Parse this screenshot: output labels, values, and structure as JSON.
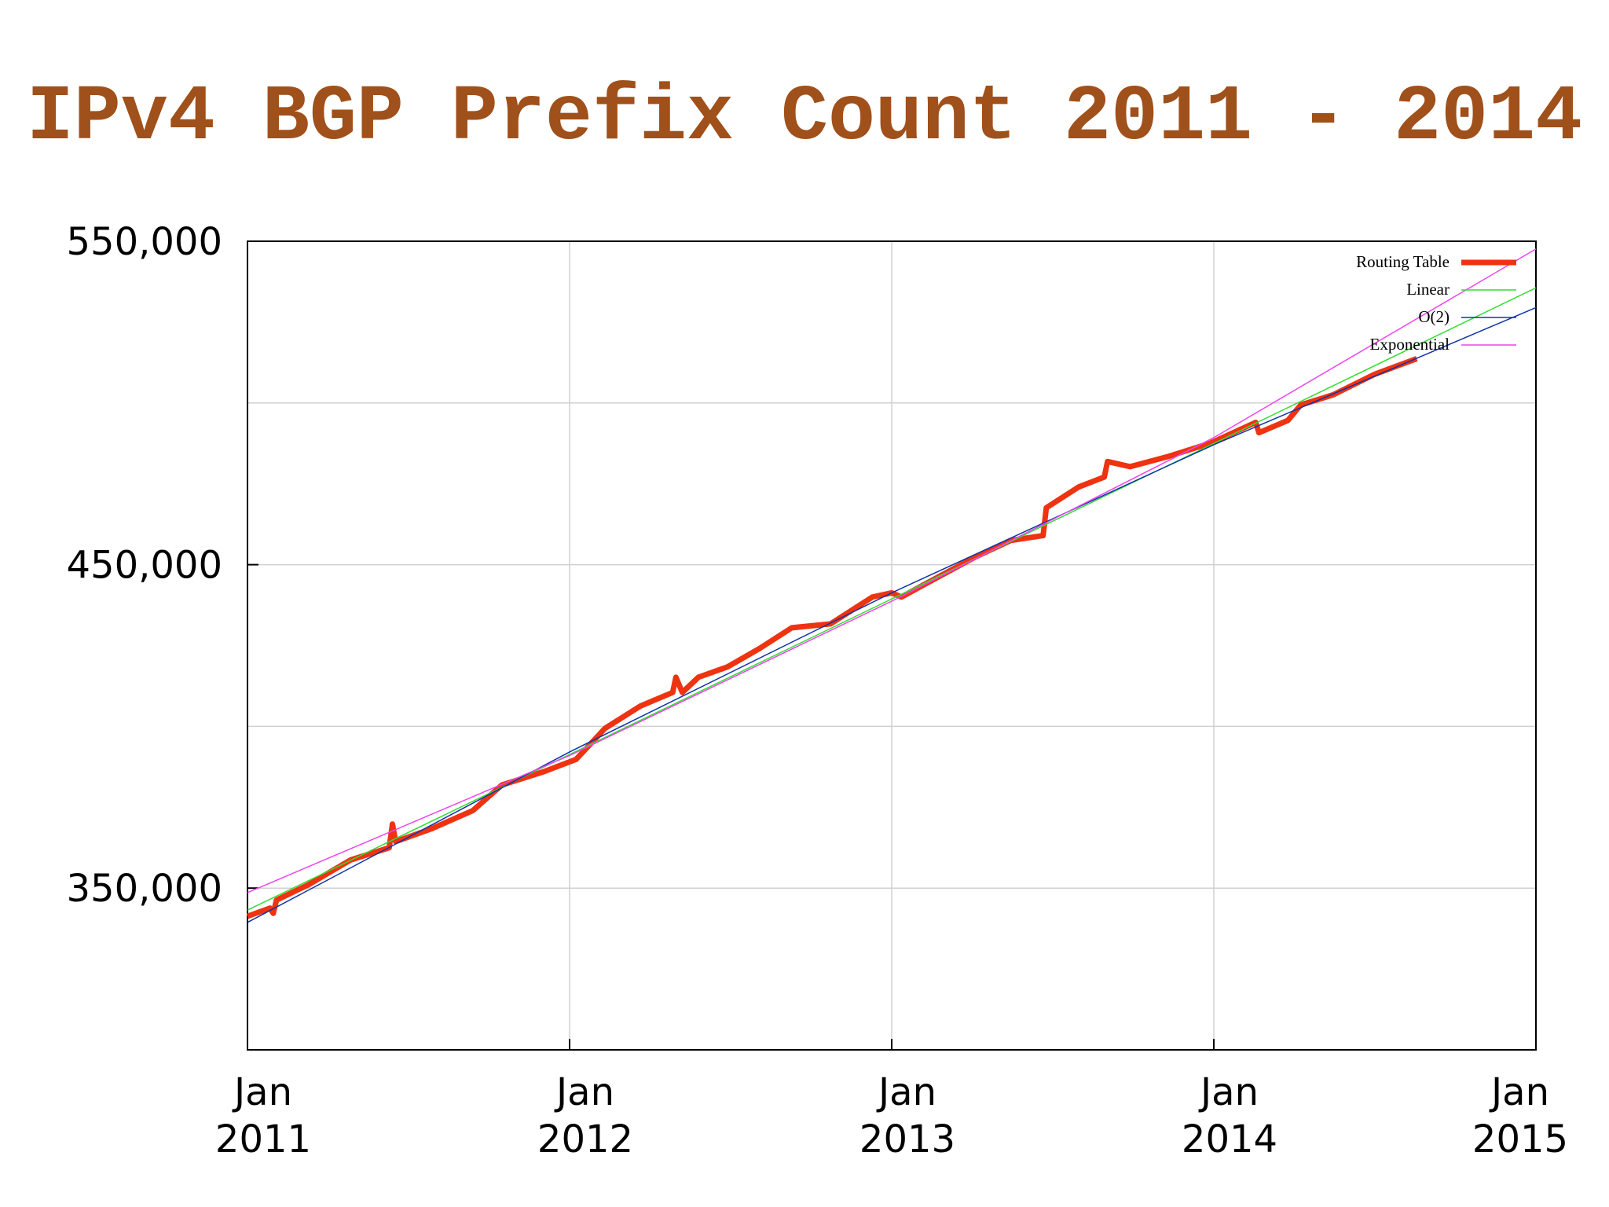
{
  "chart_data": {
    "type": "line",
    "title": "IPv4 BGP Prefix Count 2011 - 2014",
    "xlim": [
      2011,
      2015
    ],
    "xticks": [
      {
        "value": 2011,
        "label": "Jan 2011"
      },
      {
        "value": 2012,
        "label": "Jan 2012"
      },
      {
        "value": 2013,
        "label": "Jan 2013"
      },
      {
        "value": 2014,
        "label": "Jan 2014"
      },
      {
        "value": 2015,
        "label": "Jan 2015"
      }
    ],
    "ylim": [
      300000,
      550000
    ],
    "yticks": [
      {
        "value": 350000,
        "label": "350,000"
      },
      {
        "value": 450000,
        "label": "450,000"
      },
      {
        "value": 550000,
        "label": "550,000"
      }
    ],
    "ygrid_minor": [
      400000,
      500000
    ],
    "grid": true,
    "legend": "upper right",
    "series": [
      {
        "name": "Routing Table",
        "color": "#ee3311",
        "x": [
          2011.0,
          2011.07,
          2011.08,
          2011.09,
          2011.19,
          2011.32,
          2011.44,
          2011.45,
          2011.46,
          2011.57,
          2011.7,
          2011.79,
          2011.92,
          2012.02,
          2012.11,
          2012.22,
          2012.32,
          2012.33,
          2012.35,
          2012.4,
          2012.49,
          2012.59,
          2012.69,
          2012.81,
          2012.94,
          2013.0,
          2013.03,
          2013.1,
          2013.26,
          2013.37,
          2013.47,
          2013.48,
          2013.58,
          2013.66,
          2013.67,
          2013.74,
          2013.86,
          2013.99,
          2014.13,
          2014.14,
          2014.23,
          2014.27,
          2014.37,
          2014.5,
          2014.63
        ],
        "values": [
          341300,
          343800,
          342200,
          346300,
          351100,
          358700,
          362500,
          369800,
          364400,
          368300,
          374000,
          381900,
          386000,
          389800,
          399400,
          406300,
          410500,
          415200,
          410500,
          415200,
          418400,
          424100,
          430500,
          431700,
          440000,
          441300,
          440000,
          443800,
          452400,
          457500,
          459000,
          467600,
          474000,
          477100,
          481900,
          480300,
          483500,
          487600,
          494000,
          490800,
          494600,
          499400,
          502500,
          508900,
          513700
        ]
      },
      {
        "name": "Linear",
        "color": "#33dd33",
        "x": [
          2011,
          2012,
          2013,
          2014,
          2015
        ],
        "values": [
          343200,
          391300,
          439400,
          487500,
          535600
        ]
      },
      {
        "name": "O(2)",
        "color": "#1133aa",
        "x": [
          2011,
          2012,
          2013,
          2014,
          2015
        ],
        "values": [
          339400,
          392100,
          441300,
          487100,
          529500
        ]
      },
      {
        "name": "Exponential",
        "color": "#ee44ee",
        "x": [
          2011,
          2012,
          2013,
          2014,
          2015
        ],
        "values": [
          348600,
          391000,
          438700,
          489300,
          547600
        ]
      }
    ]
  }
}
